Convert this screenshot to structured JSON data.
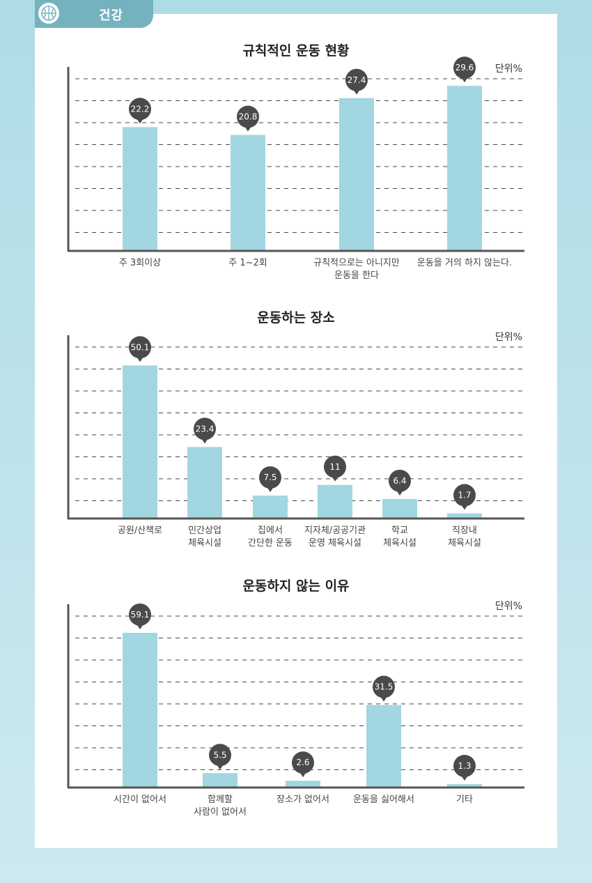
{
  "section_badge": {
    "label": "건강",
    "icon": "basketball-icon"
  },
  "colors": {
    "bar": "#a2d6e1",
    "bubble": "#4a4a4a",
    "axis": "#555555",
    "grid": "#444444",
    "badge": "#74b3be"
  },
  "chart_data": [
    {
      "type": "bar",
      "title": "규칙적인 운동 현황",
      "unit_label": "단위%",
      "categories": [
        "주 3회이상",
        "주 1~2회",
        "규칙적으로는 아니지만\n운동을 한다",
        "운동을 거의 하지 않는다."
      ],
      "values": [
        22.2,
        20.8,
        27.4,
        29.6
      ],
      "ylim": [
        0,
        33
      ],
      "grid": true
    },
    {
      "type": "bar",
      "title": "운동하는 장소",
      "unit_label": "단위%",
      "categories": [
        "공원/산책로",
        "민간상업\n체육시설",
        "집에서\n간단한 운동",
        "지자체/공공기관\n운영 체육시설",
        "학교\n체육시설",
        "직장내\n체육시설"
      ],
      "values": [
        50.1,
        23.4,
        7.5,
        11,
        6.4,
        1.7
      ],
      "ylim": [
        0,
        60
      ],
      "grid": true
    },
    {
      "type": "bar",
      "title": "운동하지 않는 이유",
      "unit_label": "단위%",
      "categories": [
        "시간이 없어서",
        "함께할\n사람이 없어서",
        "장소가 없어서",
        "운동을 싫어해서",
        "기타"
      ],
      "values": [
        59.1,
        5.5,
        2.6,
        31.5,
        1.3
      ],
      "ylim": [
        0,
        70
      ],
      "grid": true
    }
  ]
}
